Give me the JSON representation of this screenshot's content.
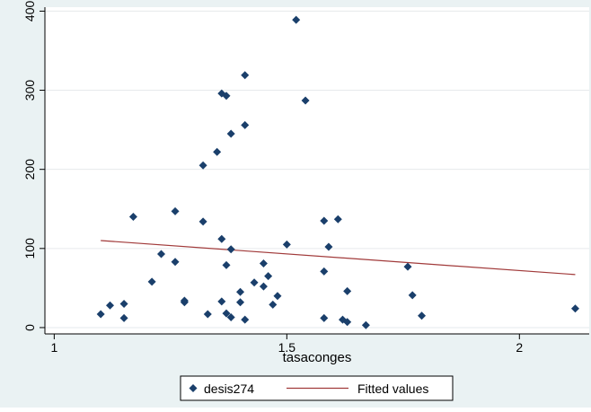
{
  "chart_data": {
    "type": "scatter",
    "title": "",
    "xlabel": "tasaconges",
    "ylabel": "",
    "xlim": [
      0.98,
      2.15
    ],
    "ylim": [
      -8,
      405
    ],
    "x_ticks": [
      {
        "value": 1,
        "label": "1"
      },
      {
        "value": 1.5,
        "label": "1.5"
      },
      {
        "value": 2,
        "label": "2"
      }
    ],
    "y_ticks": [
      {
        "value": 0,
        "label": "0"
      },
      {
        "value": 100,
        "label": "100"
      },
      {
        "value": 200,
        "label": "200"
      },
      {
        "value": 300,
        "label": "300"
      },
      {
        "value": 400,
        "label": "400"
      }
    ],
    "grid": "horizontal",
    "legend_position": "bottom",
    "colors": {
      "background": "#eaf2f3",
      "plot_area": "#ffffff",
      "points": "#1a3f6b",
      "fit_line": "#a13a3a",
      "grid": "#e6eaec"
    },
    "series": [
      {
        "name": "desis274",
        "kind": "scatter",
        "marker": "diamond",
        "points": [
          [
            1.1,
            17
          ],
          [
            1.12,
            28
          ],
          [
            1.15,
            30
          ],
          [
            1.15,
            12
          ],
          [
            1.17,
            140
          ],
          [
            1.21,
            58
          ],
          [
            1.23,
            93
          ],
          [
            1.26,
            83
          ],
          [
            1.26,
            147
          ],
          [
            1.28,
            34
          ],
          [
            1.28,
            32
          ],
          [
            1.32,
            205
          ],
          [
            1.32,
            134
          ],
          [
            1.33,
            17
          ],
          [
            1.35,
            222
          ],
          [
            1.36,
            33
          ],
          [
            1.36,
            112
          ],
          [
            1.36,
            296
          ],
          [
            1.37,
            293
          ],
          [
            1.37,
            79
          ],
          [
            1.37,
            18
          ],
          [
            1.38,
            13
          ],
          [
            1.38,
            245
          ],
          [
            1.38,
            99
          ],
          [
            1.4,
            32
          ],
          [
            1.4,
            45
          ],
          [
            1.41,
            256
          ],
          [
            1.41,
            319
          ],
          [
            1.41,
            10
          ],
          [
            1.43,
            57
          ],
          [
            1.45,
            81
          ],
          [
            1.45,
            52
          ],
          [
            1.46,
            65
          ],
          [
            1.47,
            29
          ],
          [
            1.48,
            40
          ],
          [
            1.5,
            105
          ],
          [
            1.52,
            389
          ],
          [
            1.54,
            287
          ],
          [
            1.58,
            135
          ],
          [
            1.58,
            71
          ],
          [
            1.58,
            12
          ],
          [
            1.59,
            102
          ],
          [
            1.61,
            137
          ],
          [
            1.62,
            10
          ],
          [
            1.63,
            46
          ],
          [
            1.63,
            7
          ],
          [
            1.67,
            3
          ],
          [
            1.76,
            77
          ],
          [
            1.77,
            41
          ],
          [
            1.79,
            15
          ],
          [
            2.12,
            24
          ]
        ]
      },
      {
        "name": "Fitted values",
        "kind": "line",
        "points": [
          [
            1.1,
            110
          ],
          [
            2.12,
            67
          ]
        ]
      }
    ]
  }
}
